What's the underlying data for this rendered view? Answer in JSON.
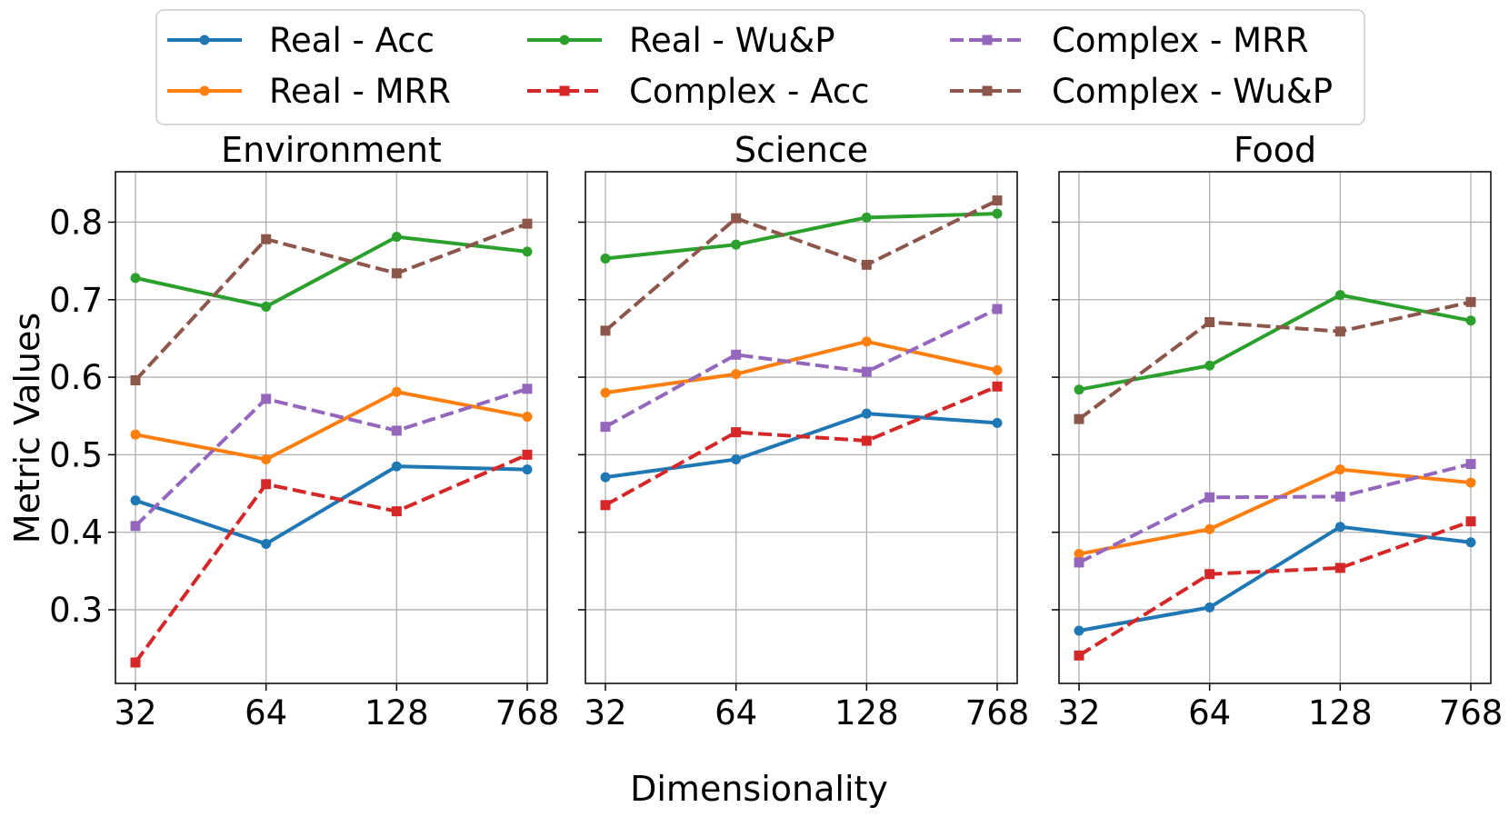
{
  "chart_data": {
    "type": "line",
    "ylabel": "Metric Values",
    "xlabel": "Dimensionality",
    "categories": [
      "32",
      "64",
      "128",
      "768"
    ],
    "ylim": [
      0.205,
      0.865
    ],
    "yticks": [
      0.3,
      0.4,
      0.5,
      0.6,
      0.7,
      0.8
    ],
    "ytick_labels": [
      "0.3",
      "0.4",
      "0.5",
      "0.6",
      "0.7",
      "0.8"
    ],
    "grid": true,
    "legend_position": "top-center",
    "series_styles": [
      {
        "name": "Real - Acc",
        "color": "#1f77b4",
        "dash": "solid",
        "marker": "circle"
      },
      {
        "name": "Real - MRR",
        "color": "#ff7f0e",
        "dash": "solid",
        "marker": "circle"
      },
      {
        "name": "Real - Wu&P",
        "color": "#2ca02c",
        "dash": "solid",
        "marker": "circle"
      },
      {
        "name": "Complex - Acc",
        "color": "#d62728",
        "dash": "dashed",
        "marker": "square"
      },
      {
        "name": "Complex - MRR",
        "color": "#9467bd",
        "dash": "dashed",
        "marker": "square"
      },
      {
        "name": "Complex - Wu&P",
        "color": "#8c564b",
        "dash": "dashed",
        "marker": "square"
      }
    ],
    "panels": [
      {
        "title": "Environment",
        "series": [
          {
            "name": "Real - Acc",
            "values": [
              0.441,
              0.385,
              0.485,
              0.481
            ]
          },
          {
            "name": "Real - MRR",
            "values": [
              0.526,
              0.494,
              0.581,
              0.549
            ]
          },
          {
            "name": "Real - Wu&P",
            "values": [
              0.728,
              0.691,
              0.781,
              0.762
            ]
          },
          {
            "name": "Complex - Acc",
            "values": [
              0.232,
              0.462,
              0.427,
              0.5
            ]
          },
          {
            "name": "Complex - MRR",
            "values": [
              0.408,
              0.572,
              0.531,
              0.585
            ]
          },
          {
            "name": "Complex - Wu&P",
            "values": [
              0.596,
              0.778,
              0.734,
              0.798
            ]
          }
        ]
      },
      {
        "title": "Science",
        "series": [
          {
            "name": "Real - Acc",
            "values": [
              0.471,
              0.494,
              0.553,
              0.541
            ]
          },
          {
            "name": "Real - MRR",
            "values": [
              0.58,
              0.604,
              0.646,
              0.609
            ]
          },
          {
            "name": "Real - Wu&P",
            "values": [
              0.753,
              0.771,
              0.806,
              0.811
            ]
          },
          {
            "name": "Complex - Acc",
            "values": [
              0.435,
              0.529,
              0.518,
              0.588
            ]
          },
          {
            "name": "Complex - MRR",
            "values": [
              0.536,
              0.629,
              0.607,
              0.688
            ]
          },
          {
            "name": "Complex - Wu&P",
            "values": [
              0.66,
              0.805,
              0.745,
              0.828
            ]
          }
        ]
      },
      {
        "title": "Food",
        "series": [
          {
            "name": "Real - Acc",
            "values": [
              0.273,
              0.303,
              0.407,
              0.387
            ]
          },
          {
            "name": "Real - MRR",
            "values": [
              0.372,
              0.404,
              0.481,
              0.464
            ]
          },
          {
            "name": "Real - Wu&P",
            "values": [
              0.584,
              0.615,
              0.706,
              0.673
            ]
          },
          {
            "name": "Complex - Acc",
            "values": [
              0.241,
              0.346,
              0.354,
              0.414
            ]
          },
          {
            "name": "Complex - MRR",
            "values": [
              0.361,
              0.445,
              0.446,
              0.488
            ]
          },
          {
            "name": "Complex - Wu&P",
            "values": [
              0.546,
              0.671,
              0.659,
              0.697
            ]
          }
        ]
      }
    ]
  }
}
